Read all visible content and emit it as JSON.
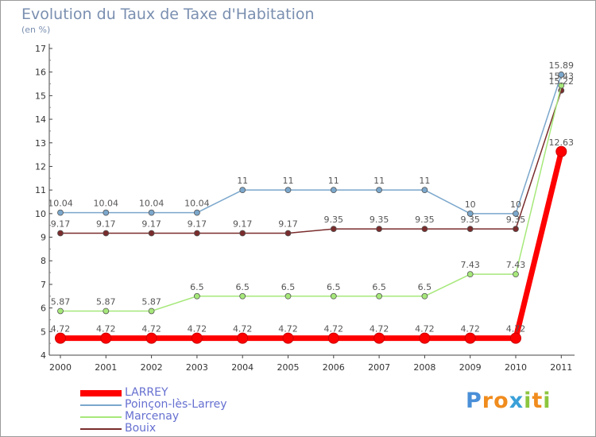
{
  "chart_data": {
    "type": "line",
    "title": "Evolution du Taux de Taxe d'Habitation",
    "subtitle": "(en %)",
    "categories": [
      "2000",
      "2001",
      "2002",
      "2003",
      "2004",
      "2005",
      "2006",
      "2007",
      "2008",
      "2009",
      "2010",
      "2011"
    ],
    "ylim": [
      4,
      17
    ],
    "yticks": [
      "4",
      "5",
      "6",
      "7",
      "8",
      "9",
      "10",
      "11",
      "12",
      "13",
      "14",
      "15",
      "16",
      "17"
    ],
    "grid": false,
    "legend_position": "bottom-left",
    "series": [
      {
        "name": "LARREY",
        "color": "#ff0000",
        "values": [
          4.72,
          4.72,
          4.72,
          4.72,
          4.72,
          4.72,
          4.72,
          4.72,
          4.72,
          4.72,
          4.72,
          12.63
        ],
        "labels": [
          "4.72",
          "4.72",
          "4.72",
          "4.72",
          "4.72",
          "4.72",
          "4.72",
          "4.72",
          "4.72",
          "4.72",
          "4.72",
          "12.63"
        ]
      },
      {
        "name": "Poinçon-lès-Larrey",
        "color": "#7ba7cc",
        "values": [
          10.04,
          10.04,
          10.04,
          10.04,
          11,
          11,
          11,
          11,
          11,
          10,
          10,
          15.89
        ],
        "labels": [
          "10.04",
          "10.04",
          "10.04",
          "10.04",
          "11",
          "11",
          "11",
          "11",
          "11",
          "10",
          "10",
          "15.89"
        ]
      },
      {
        "name": "Marcenay",
        "color": "#a6e87a",
        "values": [
          5.87,
          5.87,
          5.87,
          6.5,
          6.5,
          6.5,
          6.5,
          6.5,
          6.5,
          7.43,
          7.43,
          15.43
        ],
        "labels": [
          "5.87",
          "5.87",
          "5.87",
          "6.5",
          "6.5",
          "6.5",
          "6.5",
          "6.5",
          "6.5",
          "7.43",
          "7.43",
          "15.43"
        ]
      },
      {
        "name": "Bouix",
        "color": "#7a2c2c",
        "values": [
          9.17,
          9.17,
          9.17,
          9.17,
          9.17,
          9.17,
          9.35,
          9.35,
          9.35,
          9.35,
          9.35,
          15.22
        ],
        "labels": [
          "9.17",
          "9.17",
          "9.17",
          "9.17",
          "9.17",
          "9.17",
          "9.35",
          "9.35",
          "9.35",
          "9.35",
          "9.35",
          "15.22"
        ]
      }
    ]
  },
  "brand": {
    "letters": [
      "P",
      "r",
      "o",
      "x",
      "i",
      "t",
      "i"
    ],
    "colors": [
      "#4a8fd8",
      "#f08c1e",
      "#f08c1e",
      "#3aa0d8",
      "#8cc63f",
      "#f08c1e",
      "#8cc63f"
    ]
  }
}
